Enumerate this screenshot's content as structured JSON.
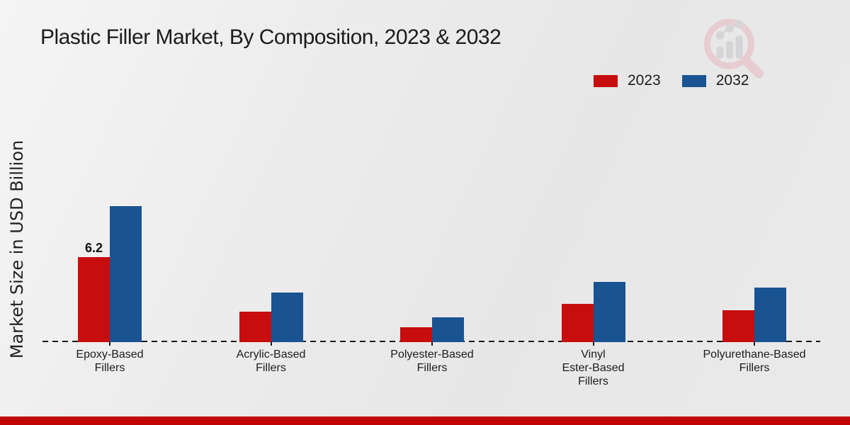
{
  "title": "Plastic Filler Market, By Composition, 2023 & 2032",
  "chart_data": {
    "type": "bar",
    "title": "Plastic Filler Market, By Composition, 2023 & 2032",
    "xlabel": "",
    "ylabel": "Market Size in USD Billion",
    "categories": [
      "Epoxy-Based\nFillers",
      "Acrylic-Based\nFillers",
      "Polyester-Based\nFillers",
      "Vinyl\nEster-Based\nFillers",
      "Polyurethane-Based\nFillers"
    ],
    "series": [
      {
        "name": "2023",
        "color": "#c70d0e",
        "values": [
          6.2,
          2.2,
          1.1,
          2.8,
          2.3
        ]
      },
      {
        "name": "2032",
        "color": "#1a5391",
        "values": [
          9.9,
          3.6,
          1.8,
          4.4,
          4.0
        ]
      }
    ],
    "annotations": [
      {
        "series_index": 0,
        "category_index": 0,
        "text": "6.2"
      }
    ],
    "ylim": [
      0,
      10.5
    ],
    "grid": false,
    "legend_position": "top-right",
    "baseline_style": "dashed"
  },
  "colors": {
    "red_2023": "#c70d0e",
    "blue_2032": "#1a5391",
    "bottom_band": "#c00303",
    "background": "#ebebeb"
  },
  "watermark": {
    "name": "market-research-chart-logo"
  }
}
